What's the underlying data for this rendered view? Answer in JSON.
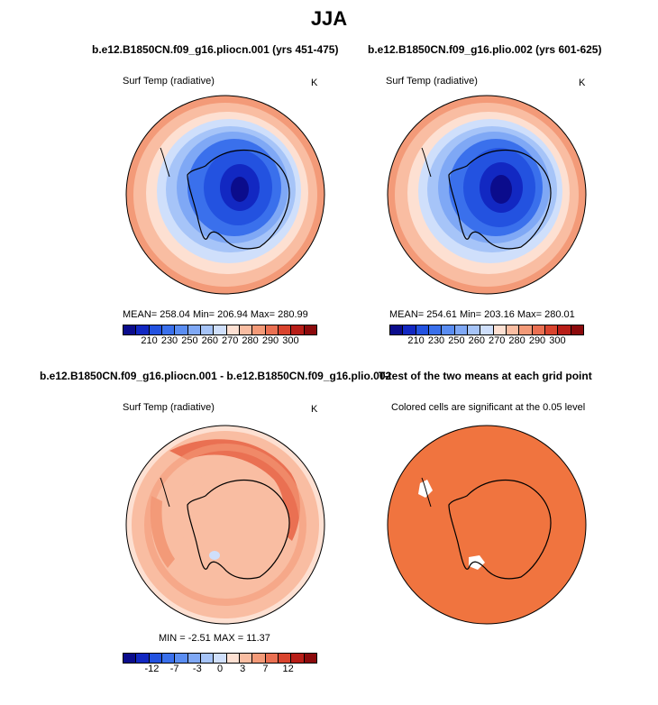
{
  "title": "JJA",
  "panels": {
    "top_left": {
      "case": "b.e12.B1850CN.f09_g16.pliocn.001 (yrs 451-475)",
      "variable": "Surf Temp (radiative)",
      "units": "K",
      "stats": "MEAN= 258.04   Min= 206.94   Max= 280.99"
    },
    "top_right": {
      "case": "b.e12.B1850CN.f09_g16.plio.002 (yrs 601-625)",
      "variable": "Surf Temp (radiative)",
      "units": "K",
      "stats": "MEAN= 254.61   Min= 203.16   Max= 280.01"
    },
    "bottom_left": {
      "case": "b.e12.B1850CN.f09_g16.pliocn.001 - b.e12.B1850CN.f09_g16.plio.002",
      "variable": "Surf Temp (radiative)",
      "units": "K",
      "stats": "MIN =   -2.51  MAX =   11.37"
    },
    "bottom_right": {
      "case": "T-test of the two means at each grid point",
      "variable": "Colored cells are significant at the 0.05 level"
    }
  },
  "colorbar_abs": {
    "colors": [
      "#0b0c8c",
      "#1228c2",
      "#2352e0",
      "#3a70ec",
      "#5a8df2",
      "#7fa8f5",
      "#a6c4f8",
      "#cfdffb",
      "#fde0d2",
      "#f9bda2",
      "#f39a78",
      "#ea7052",
      "#d9442e",
      "#b81e18",
      "#8c0a0c"
    ],
    "labels": [
      "210",
      "230",
      "250",
      "260",
      "270",
      "280",
      "290",
      "300"
    ]
  },
  "colorbar_diff": {
    "colors": [
      "#0b0c8c",
      "#1228c2",
      "#2352e0",
      "#3a70ec",
      "#5a8df2",
      "#7fa8f5",
      "#a6c4f8",
      "#cfdffb",
      "#fde0d2",
      "#f9bda2",
      "#f39a78",
      "#ea7052",
      "#d9442e",
      "#b81e18",
      "#8c0a0c"
    ],
    "labels": [
      "-12",
      "-7",
      "-3",
      "0",
      "3",
      "7",
      "12"
    ]
  },
  "colors": {
    "significant": "#f0743f",
    "warm_ring": "#f4a07c",
    "ocean_pale": "#fbd3c0"
  }
}
